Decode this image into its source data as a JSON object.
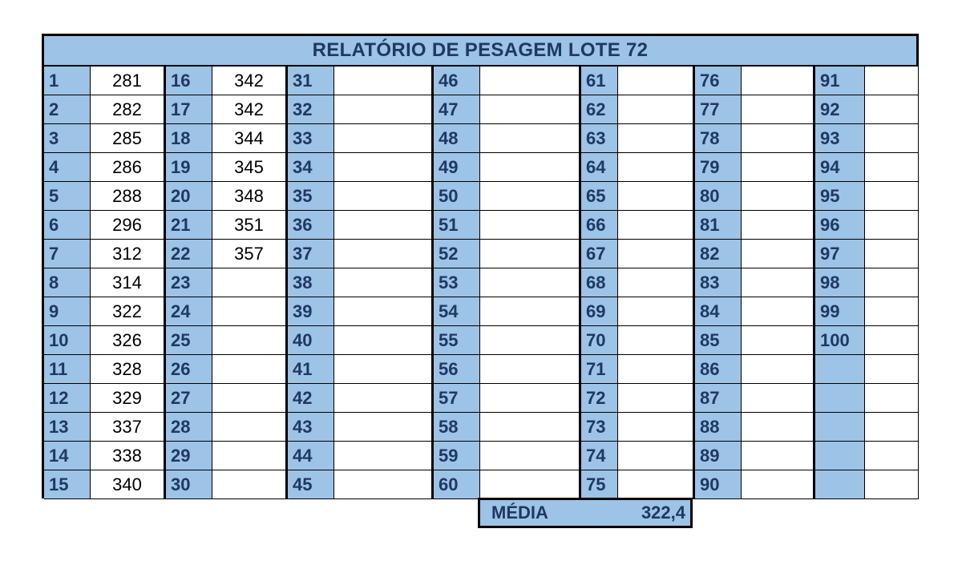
{
  "report": {
    "title": "RELATÓRIO DE PESAGEM LOTE 72"
  },
  "columns": [
    {
      "numbers": [
        "1",
        "2",
        "3",
        "4",
        "5",
        "6",
        "7",
        "8",
        "9",
        "10",
        "11",
        "12",
        "13",
        "14",
        "15"
      ],
      "weights": [
        "281",
        "282",
        "285",
        "286",
        "288",
        "296",
        "312",
        "314",
        "322",
        "326",
        "328",
        "329",
        "337",
        "338",
        "340"
      ]
    },
    {
      "numbers": [
        "16",
        "17",
        "18",
        "19",
        "20",
        "21",
        "22",
        "23",
        "24",
        "25",
        "26",
        "27",
        "28",
        "29",
        "30"
      ],
      "weights": [
        "342",
        "342",
        "344",
        "345",
        "348",
        "351",
        "357",
        "",
        "",
        "",
        "",
        "",
        "",
        "",
        ""
      ]
    },
    {
      "numbers": [
        "31",
        "32",
        "33",
        "34",
        "35",
        "36",
        "37",
        "38",
        "39",
        "40",
        "41",
        "42",
        "43",
        "44",
        "45"
      ],
      "weights": [
        "",
        "",
        "",
        "",
        "",
        "",
        "",
        "",
        "",
        "",
        "",
        "",
        "",
        "",
        ""
      ]
    },
    {
      "numbers": [
        "46",
        "47",
        "48",
        "49",
        "50",
        "51",
        "52",
        "53",
        "54",
        "55",
        "56",
        "57",
        "58",
        "59",
        "60"
      ],
      "weights": [
        "",
        "",
        "",
        "",
        "",
        "",
        "",
        "",
        "",
        "",
        "",
        "",
        "",
        "",
        ""
      ]
    },
    {
      "numbers": [
        "61",
        "62",
        "63",
        "64",
        "65",
        "66",
        "67",
        "68",
        "69",
        "70",
        "71",
        "72",
        "73",
        "74",
        "75"
      ],
      "weights": [
        "",
        "",
        "",
        "",
        "",
        "",
        "",
        "",
        "",
        "",
        "",
        "",
        "",
        "",
        ""
      ]
    },
    {
      "numbers": [
        "76",
        "77",
        "78",
        "79",
        "80",
        "81",
        "82",
        "83",
        "84",
        "85",
        "86",
        "87",
        "88",
        "89",
        "90"
      ],
      "weights": [
        "",
        "",
        "",
        "",
        "",
        "",
        "",
        "",
        "",
        "",
        "",
        "",
        "",
        "",
        ""
      ]
    },
    {
      "numbers": [
        "91",
        "92",
        "93",
        "94",
        "95",
        "96",
        "97",
        "98",
        "99",
        "100",
        "",
        "",
        "",
        "",
        ""
      ],
      "weights": [
        "",
        "",
        "",
        "",
        "",
        "",
        "",
        "",
        "",
        "",
        "",
        "",
        "",
        "",
        ""
      ]
    }
  ],
  "summary": {
    "label": "MÉDIA",
    "value": "322,4"
  },
  "colors": {
    "header_fill": "#9dc3e6",
    "header_text": "#1f3864",
    "border": "#000000"
  }
}
